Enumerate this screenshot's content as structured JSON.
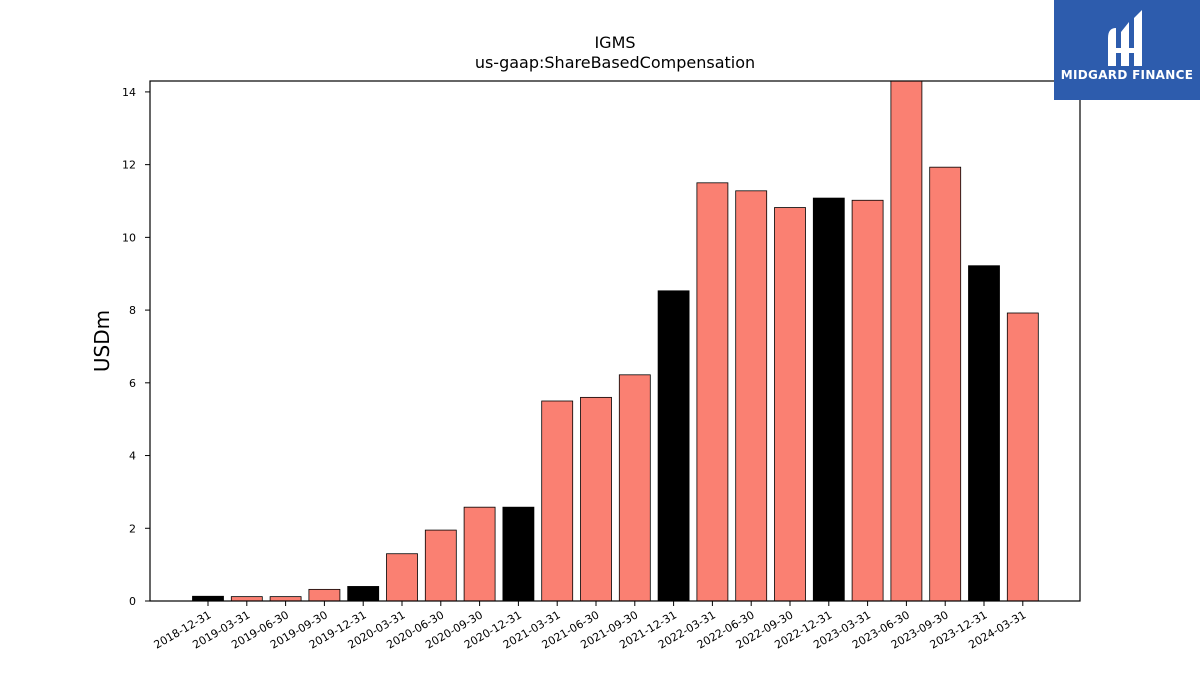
{
  "chart_data": {
    "type": "bar",
    "title": "IGMS",
    "subtitle": "us-gaap:ShareBasedCompensation",
    "xlabel": "",
    "ylabel": "USDm",
    "ylim": [
      0,
      14.3
    ],
    "yticks": [
      0,
      2,
      4,
      6,
      8,
      10,
      12,
      14
    ],
    "grid": false,
    "colors": {
      "quarterly": "#fa8072",
      "annual": "#000000",
      "edge": "#000000"
    },
    "categories": [
      "2018-12-31",
      "2019-03-31",
      "2019-06-30",
      "2019-09-30",
      "2019-12-31",
      "2020-03-31",
      "2020-06-30",
      "2020-09-30",
      "2020-12-31",
      "2021-03-31",
      "2021-06-30",
      "2021-09-30",
      "2021-12-31",
      "2022-03-31",
      "2022-06-30",
      "2022-09-30",
      "2022-12-31",
      "2023-03-31",
      "2023-06-30",
      "2023-09-30",
      "2023-12-31",
      "2024-03-31"
    ],
    "values": [
      0.13,
      0.12,
      0.12,
      0.32,
      0.4,
      1.3,
      1.95,
      2.58,
      2.58,
      5.5,
      5.6,
      6.22,
      8.53,
      11.5,
      11.28,
      10.82,
      11.08,
      11.02,
      14.3,
      11.93,
      9.22,
      7.92
    ],
    "bar_kind": [
      "annual",
      "quarterly",
      "quarterly",
      "quarterly",
      "annual",
      "quarterly",
      "quarterly",
      "quarterly",
      "annual",
      "quarterly",
      "quarterly",
      "quarterly",
      "annual",
      "quarterly",
      "quarterly",
      "quarterly",
      "annual",
      "quarterly",
      "quarterly",
      "quarterly",
      "annual",
      "quarterly"
    ]
  },
  "logo": {
    "text": "MIDGARD FINANCE"
  }
}
